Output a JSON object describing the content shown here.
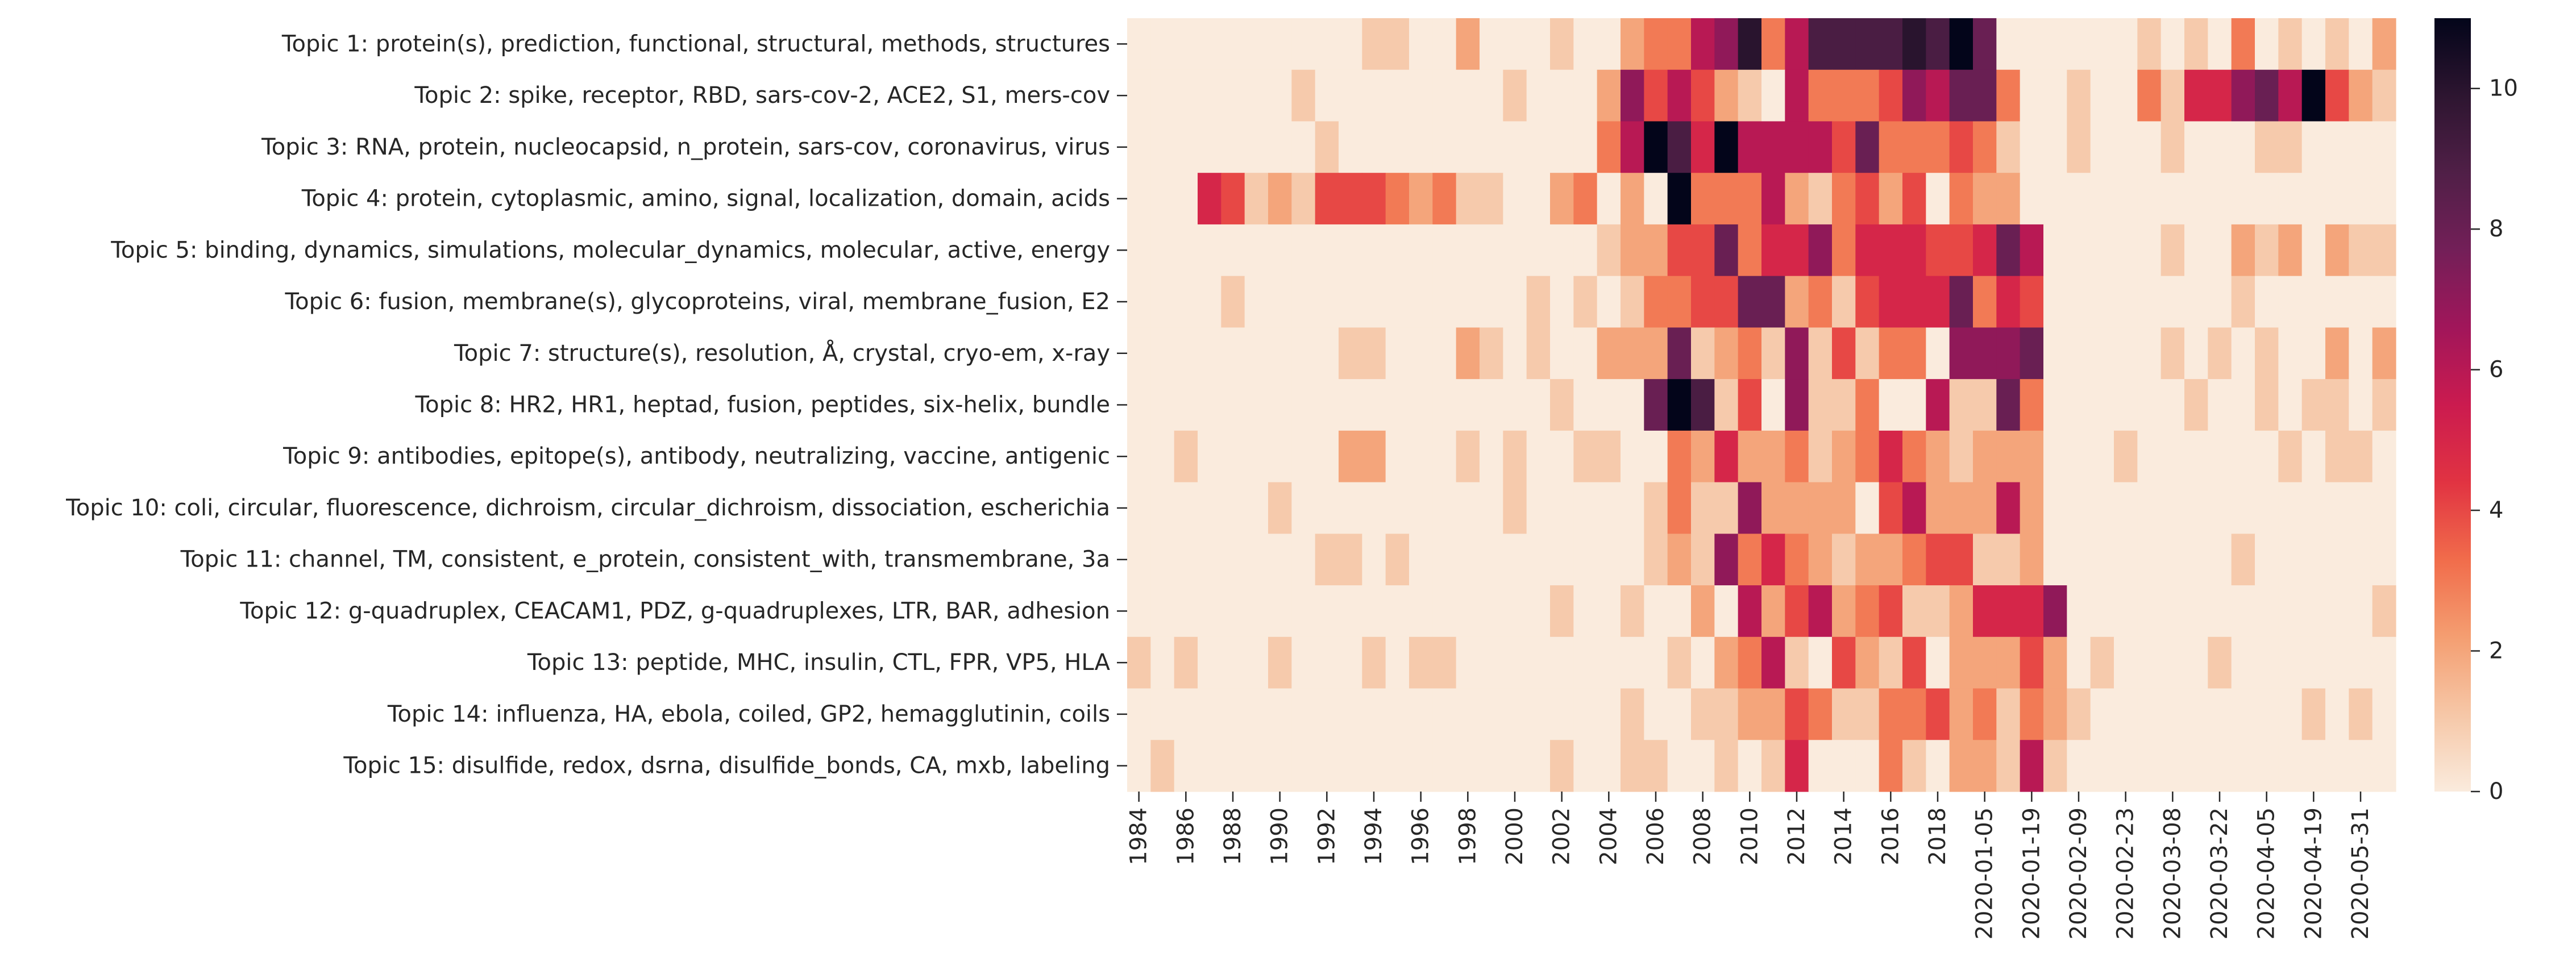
{
  "chart_data": {
    "type": "heatmap",
    "title": "",
    "xlabel": "",
    "ylabel": "",
    "x_tick_labels": [
      "1984",
      "1986",
      "1988",
      "1990",
      "1992",
      "1994",
      "1996",
      "1998",
      "2000",
      "2002",
      "2004",
      "2006",
      "2008",
      "2010",
      "2012",
      "2014",
      "2016",
      "2018",
      "2020-01-05",
      "2020-01-19",
      "2020-02-09",
      "2020-02-23",
      "2020-03-08",
      "2020-03-22",
      "2020-04-05",
      "2020-04-19",
      "2020-05-31"
    ],
    "x_tick_columns": [
      0,
      2,
      4,
      6,
      8,
      10,
      12,
      14,
      16,
      18,
      20,
      22,
      24,
      26,
      28,
      30,
      32,
      34,
      36,
      38,
      40,
      42,
      44,
      46,
      48,
      50,
      52
    ],
    "n_columns": 54,
    "rows": [
      "Topic 1: protein(s), prediction, functional, structural, methods, structures",
      "Topic 2: spike, receptor, RBD, sars-cov-2, ACE2, S1, mers-cov",
      "Topic 3: RNA, protein, nucleocapsid, n_protein, sars-cov, coronavirus, virus",
      "Topic 4: protein, cytoplasmic, amino, signal, localization, domain, acids",
      "Topic 5: binding, dynamics, simulations, molecular_dynamics, molecular, active, energy",
      "Topic 6: fusion, membrane(s), glycoproteins, viral, membrane_fusion, E2",
      "Topic 7: structure(s), resolution, Å, crystal, cryo-em, x-ray",
      "Topic 8: HR2, HR1, heptad, fusion, peptides, six-helix, bundle",
      "Topic 9: antibodies, epitope(s), antibody, neutralizing, vaccine, antigenic",
      "Topic 10: coli, circular, fluorescence, dichroism, circular_dichroism, dissociation, escherichia",
      "Topic 11: channel, TM, consistent, e_protein, consistent_with, transmembrane, 3a",
      "Topic 12: g-quadruplex, CEACAM1, PDZ, g-quadruplexes, LTR, BAR, adhesion",
      "Topic 13: peptide, MHC, insulin, CTL, FPR, VP5, HLA",
      "Topic 14: influenza, HA, ebola, coiled, GP2, hemagglutinin, coils",
      "Topic 15: disulfide, redox, dsrna, disulfide_bonds, CA, mxb, labeling"
    ],
    "values": [
      [
        0,
        0,
        0,
        0,
        0,
        0,
        0,
        0,
        0,
        0,
        1,
        1,
        0,
        0,
        2,
        0,
        0,
        0,
        1,
        0,
        0,
        2,
        3,
        3,
        6,
        7,
        10,
        3,
        6,
        9,
        9,
        9,
        9,
        10,
        9,
        11,
        8,
        0,
        0,
        0,
        0,
        0,
        0,
        1,
        0,
        1,
        0,
        3,
        0,
        1,
        0,
        1,
        0,
        2
      ],
      [
        0,
        0,
        0,
        0,
        0,
        0,
        0,
        1,
        0,
        0,
        0,
        0,
        0,
        0,
        0,
        0,
        1,
        0,
        0,
        0,
        2,
        7,
        4,
        6,
        4,
        2,
        1,
        0,
        6,
        3,
        3,
        3,
        4,
        7,
        6,
        8,
        8,
        3,
        0,
        0,
        1,
        0,
        0,
        3,
        1,
        5,
        5,
        7,
        8,
        6,
        11,
        4,
        2,
        1
      ],
      [
        0,
        0,
        0,
        0,
        0,
        0,
        0,
        0,
        1,
        0,
        0,
        0,
        0,
        0,
        0,
        0,
        0,
        0,
        0,
        0,
        3,
        6,
        11,
        9,
        5,
        11,
        6,
        6,
        6,
        6,
        4,
        8,
        3,
        3,
        3,
        4,
        3,
        1,
        0,
        0,
        1,
        0,
        0,
        0,
        1,
        0,
        0,
        0,
        1,
        1,
        0,
        0,
        0,
        0
      ],
      [
        0,
        0,
        0,
        5,
        4,
        1,
        2,
        1,
        4,
        4,
        4,
        3,
        2,
        3,
        1,
        1,
        0,
        0,
        2,
        3,
        0,
        2,
        0,
        11,
        3,
        3,
        3,
        6,
        2,
        1,
        3,
        4,
        2,
        4,
        0,
        3,
        2,
        2,
        0,
        0,
        0,
        0,
        0,
        0,
        0,
        0,
        0,
        0,
        0,
        0,
        0,
        0,
        0,
        0
      ],
      [
        0,
        0,
        0,
        0,
        0,
        0,
        0,
        0,
        0,
        0,
        0,
        0,
        0,
        0,
        0,
        0,
        0,
        0,
        0,
        0,
        1,
        2,
        2,
        4,
        4,
        8,
        3,
        5,
        5,
        7,
        3,
        5,
        5,
        5,
        4,
        4,
        5,
        8,
        6,
        0,
        0,
        0,
        0,
        0,
        1,
        0,
        0,
        2,
        1,
        2,
        0,
        2,
        1,
        1
      ],
      [
        0,
        0,
        0,
        0,
        1,
        0,
        0,
        0,
        0,
        0,
        0,
        0,
        0,
        0,
        0,
        0,
        0,
        1,
        0,
        1,
        0,
        1,
        3,
        3,
        4,
        4,
        8,
        8,
        2,
        3,
        1,
        4,
        5,
        5,
        5,
        8,
        3,
        5,
        4,
        0,
        0,
        0,
        0,
        0,
        0,
        0,
        0,
        1,
        0,
        0,
        0,
        0,
        0,
        0
      ],
      [
        0,
        0,
        0,
        0,
        0,
        0,
        0,
        0,
        0,
        1,
        1,
        0,
        0,
        0,
        2,
        1,
        0,
        1,
        0,
        0,
        2,
        2,
        2,
        8,
        1,
        2,
        3,
        1,
        7,
        1,
        4,
        1,
        3,
        3,
        0,
        7,
        7,
        7,
        8,
        0,
        0,
        0,
        0,
        0,
        1,
        0,
        1,
        0,
        1,
        0,
        0,
        2,
        0,
        2
      ],
      [
        0,
        0,
        0,
        0,
        0,
        0,
        0,
        0,
        0,
        0,
        0,
        0,
        0,
        0,
        0,
        0,
        0,
        0,
        1,
        0,
        0,
        0,
        8,
        11,
        9,
        1,
        4,
        0,
        7,
        1,
        1,
        3,
        0,
        0,
        6,
        1,
        1,
        8,
        3,
        0,
        0,
        0,
        0,
        0,
        0,
        1,
        0,
        0,
        1,
        0,
        1,
        1,
        0,
        1
      ],
      [
        0,
        0,
        1,
        0,
        0,
        0,
        0,
        0,
        0,
        2,
        2,
        0,
        0,
        0,
        1,
        0,
        1,
        0,
        0,
        1,
        1,
        0,
        0,
        3,
        2,
        5,
        2,
        2,
        3,
        1,
        2,
        3,
        5,
        3,
        2,
        1,
        2,
        2,
        2,
        0,
        0,
        0,
        1,
        0,
        0,
        0,
        0,
        0,
        0,
        1,
        0,
        1,
        1,
        0
      ],
      [
        0,
        0,
        0,
        0,
        0,
        0,
        1,
        0,
        0,
        0,
        0,
        0,
        0,
        0,
        0,
        0,
        1,
        0,
        0,
        0,
        0,
        0,
        1,
        3,
        1,
        1,
        7,
        2,
        2,
        2,
        2,
        0,
        4,
        6,
        2,
        2,
        2,
        6,
        2,
        0,
        0,
        0,
        0,
        0,
        0,
        0,
        0,
        0,
        0,
        0,
        0,
        0,
        0,
        0
      ],
      [
        0,
        0,
        0,
        0,
        0,
        0,
        0,
        0,
        1,
        1,
        0,
        1,
        0,
        0,
        0,
        0,
        0,
        0,
        0,
        0,
        0,
        0,
        1,
        2,
        1,
        7,
        3,
        5,
        3,
        2,
        1,
        2,
        2,
        3,
        4,
        4,
        1,
        1,
        2,
        0,
        0,
        0,
        0,
        0,
        0,
        0,
        0,
        1,
        0,
        0,
        0,
        0,
        0,
        0
      ],
      [
        0,
        0,
        0,
        0,
        0,
        0,
        0,
        0,
        0,
        0,
        0,
        0,
        0,
        0,
        0,
        0,
        0,
        0,
        1,
        0,
        0,
        1,
        0,
        0,
        2,
        0,
        6,
        2,
        4,
        6,
        2,
        3,
        4,
        1,
        1,
        2,
        5,
        5,
        5,
        7,
        0,
        0,
        0,
        0,
        0,
        0,
        0,
        0,
        0,
        0,
        0,
        0,
        0,
        1
      ],
      [
        1,
        0,
        1,
        0,
        0,
        0,
        1,
        0,
        0,
        0,
        1,
        0,
        1,
        1,
        0,
        0,
        0,
        0,
        0,
        0,
        0,
        0,
        0,
        1,
        0,
        2,
        3,
        6,
        1,
        0,
        4,
        2,
        1,
        4,
        0,
        2,
        2,
        2,
        4,
        2,
        0,
        1,
        0,
        0,
        0,
        0,
        1,
        0,
        0,
        0,
        0,
        0,
        0,
        0
      ],
      [
        0,
        0,
        0,
        0,
        0,
        0,
        0,
        0,
        0,
        0,
        0,
        0,
        0,
        0,
        0,
        0,
        0,
        0,
        0,
        0,
        0,
        1,
        0,
        0,
        1,
        1,
        2,
        2,
        4,
        3,
        1,
        1,
        3,
        3,
        4,
        2,
        3,
        1,
        3,
        2,
        1,
        0,
        0,
        0,
        0,
        0,
        0,
        0,
        0,
        0,
        1,
        0,
        1,
        0
      ],
      [
        0,
        1,
        0,
        0,
        0,
        0,
        0,
        0,
        0,
        0,
        0,
        0,
        0,
        0,
        0,
        0,
        0,
        0,
        1,
        0,
        0,
        1,
        1,
        0,
        0,
        1,
        0,
        1,
        5,
        0,
        0,
        0,
        3,
        1,
        0,
        2,
        2,
        1,
        6,
        1,
        0,
        0,
        0,
        0,
        0,
        0,
        0,
        0,
        0,
        0,
        0,
        0,
        0,
        0
      ]
    ],
    "vmin": 0,
    "vmax": 11,
    "colorbar_ticks": [
      0,
      2,
      4,
      6,
      8,
      10
    ],
    "colormap": "rocket_r",
    "grid": false,
    "legend": "colorbar-right"
  }
}
